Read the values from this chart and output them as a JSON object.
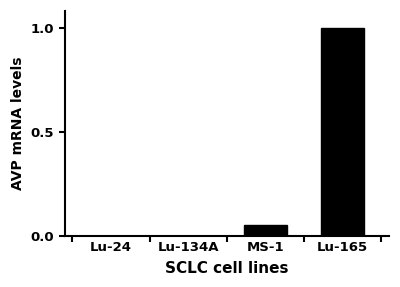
{
  "categories": [
    "Lu-24",
    "Lu-134A",
    "MS-1",
    "Lu-165"
  ],
  "values": [
    0.002,
    0.002,
    0.052,
    1.0
  ],
  "bar_color": "#000000",
  "xlabel": "SCLC cell lines",
  "ylabel": "AVP mRNA levels",
  "ylim": [
    0,
    1.08
  ],
  "yticks": [
    0.0,
    0.5,
    1.0
  ],
  "background_color": "#ffffff",
  "bar_width": 0.55,
  "xlabel_fontsize": 11,
  "ylabel_fontsize": 10,
  "tick_fontsize": 9.5,
  "label_fontweight": "bold"
}
